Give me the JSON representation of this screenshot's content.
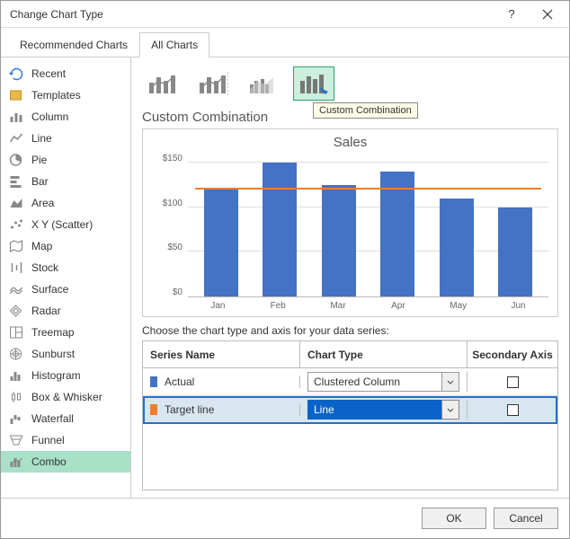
{
  "window": {
    "title": "Change Chart Type"
  },
  "tabs": {
    "recommended": "Recommended Charts",
    "all": "All Charts"
  },
  "sidebar": [
    {
      "label": "Recent",
      "icon": "recent"
    },
    {
      "label": "Templates",
      "icon": "templates"
    },
    {
      "label": "Column",
      "icon": "column"
    },
    {
      "label": "Line",
      "icon": "line"
    },
    {
      "label": "Pie",
      "icon": "pie"
    },
    {
      "label": "Bar",
      "icon": "bar"
    },
    {
      "label": "Area",
      "icon": "area"
    },
    {
      "label": "X Y (Scatter)",
      "icon": "scatter"
    },
    {
      "label": "Map",
      "icon": "map"
    },
    {
      "label": "Stock",
      "icon": "stock"
    },
    {
      "label": "Surface",
      "icon": "surface"
    },
    {
      "label": "Radar",
      "icon": "radar"
    },
    {
      "label": "Treemap",
      "icon": "treemap"
    },
    {
      "label": "Sunburst",
      "icon": "sunburst"
    },
    {
      "label": "Histogram",
      "icon": "histogram"
    },
    {
      "label": "Box & Whisker",
      "icon": "box"
    },
    {
      "label": "Waterfall",
      "icon": "waterfall"
    },
    {
      "label": "Funnel",
      "icon": "funnel"
    },
    {
      "label": "Combo",
      "icon": "combo"
    }
  ],
  "subtitle": "Custom Combination",
  "tooltip": "Custom Combination",
  "chart": {
    "title": "Sales",
    "type": "combo",
    "categories": [
      "Jan",
      "Feb",
      "Mar",
      "Apr",
      "May",
      "Jun"
    ],
    "bar_values": [
      120,
      150,
      125,
      140,
      110,
      100
    ],
    "bar_color": "#4472c4",
    "target_value": 120,
    "target_color": "#ed7d31",
    "ylim_max": 160,
    "ytick_step": 50,
    "ylabels": [
      "$150",
      "$100",
      "$50",
      "$0"
    ],
    "grid_color": "#dddddd",
    "background_color": "#ffffff"
  },
  "series_section_label": "Choose the chart type and axis for your data series:",
  "grid_headers": {
    "name": "Series Name",
    "type": "Chart Type",
    "axis": "Secondary Axis"
  },
  "series": [
    {
      "name": "Actual",
      "color": "#4472c4",
      "chart_type": "Clustered Column",
      "secondary": false,
      "highlight": false
    },
    {
      "name": "Target line",
      "color": "#ed7d31",
      "chart_type": "Line",
      "secondary": false,
      "highlight": true
    }
  ],
  "footer": {
    "ok": "OK",
    "cancel": "Cancel"
  }
}
